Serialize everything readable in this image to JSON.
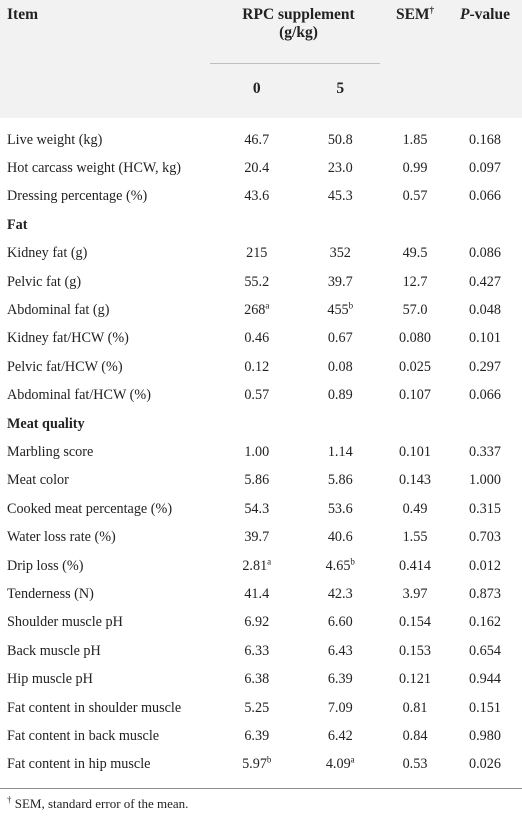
{
  "header": {
    "item": "Item",
    "group": "RPC supplement",
    "group_unit": "(g/kg)",
    "sem": "SEM",
    "sem_mark": "†",
    "p_prefix": "P",
    "p_suffix": "-value",
    "dose0": "0",
    "dose5": "5"
  },
  "rows": [
    {
      "type": "data",
      "item": "Live weight (kg)",
      "v0": "46.7",
      "v5": "50.8",
      "sem": "1.85",
      "p": "0.168"
    },
    {
      "type": "data",
      "item": "Hot carcass weight (HCW, kg)",
      "v0": "20.4",
      "v5": "23.0",
      "sem": "0.99",
      "p": "0.097"
    },
    {
      "type": "data",
      "item": "Dressing percentage (%)",
      "v0": "43.6",
      "v5": "45.3",
      "sem": "0.57",
      "p": "0.066"
    },
    {
      "type": "section",
      "item": "Fat"
    },
    {
      "type": "data",
      "item": "Kidney fat (g)",
      "v0": "215",
      "v5": "352",
      "sem": "49.5",
      "p": "0.086"
    },
    {
      "type": "data",
      "item": "Pelvic fat (g)",
      "v0": "55.2",
      "v5": "39.7",
      "sem": "12.7",
      "p": "0.427"
    },
    {
      "type": "data",
      "item": "Abdominal fat (g)",
      "v0": "268",
      "v0_sup": "a",
      "v5": "455",
      "v5_sup": "b",
      "sem": "57.0",
      "p": "0.048"
    },
    {
      "type": "data",
      "item": "Kidney fat/HCW (%)",
      "v0": "0.46",
      "v5": "0.67",
      "sem": "0.080",
      "p": "0.101"
    },
    {
      "type": "data",
      "item": "Pelvic fat/HCW (%)",
      "v0": "0.12",
      "v5": "0.08",
      "sem": "0.025",
      "p": "0.297"
    },
    {
      "type": "data",
      "item": "Abdominal fat/HCW (%)",
      "v0": "0.57",
      "v5": "0.89",
      "sem": "0.107",
      "p": "0.066"
    },
    {
      "type": "section",
      "item": "Meat quality"
    },
    {
      "type": "data",
      "item": "Marbling score",
      "v0": "1.00",
      "v5": "1.14",
      "sem": "0.101",
      "p": "0.337"
    },
    {
      "type": "data",
      "item": "Meat color",
      "v0": "5.86",
      "v5": "5.86",
      "sem": "0.143",
      "p": "1.000"
    },
    {
      "type": "data",
      "item": "Cooked meat percentage (%)",
      "v0": "54.3",
      "v5": "53.6",
      "sem": "0.49",
      "p": "0.315"
    },
    {
      "type": "data",
      "item": "Water loss rate (%)",
      "v0": "39.7",
      "v5": "40.6",
      "sem": "1.55",
      "p": "0.703"
    },
    {
      "type": "data",
      "item": "Drip loss (%)",
      "v0": "2.81",
      "v0_sup": "a",
      "v5": "4.65",
      "v5_sup": "b",
      "sem": "0.414",
      "p": "0.012"
    },
    {
      "type": "data",
      "item": "Tenderness (N)",
      "v0": "41.4",
      "v5": "42.3",
      "sem": "3.97",
      "p": "0.873"
    },
    {
      "type": "data",
      "item": "Shoulder muscle pH",
      "v0": "6.92",
      "v5": "6.60",
      "sem": "0.154",
      "p": "0.162"
    },
    {
      "type": "data",
      "item": "Back muscle pH",
      "v0": "6.33",
      "v5": "6.43",
      "sem": "0.153",
      "p": "0.654"
    },
    {
      "type": "data",
      "item": "Hip muscle pH",
      "v0": "6.38",
      "v5": "6.39",
      "sem": "0.121",
      "p": "0.944"
    },
    {
      "type": "data",
      "item": "Fat content in shoulder muscle",
      "v0": "5.25",
      "v5": "7.09",
      "sem": "0.81",
      "p": "0.151"
    },
    {
      "type": "data",
      "item": "Fat content in back muscle",
      "v0": "6.39",
      "v5": "6.42",
      "sem": "0.84",
      "p": "0.980"
    },
    {
      "type": "data",
      "item": "Fat content in hip muscle",
      "v0": "5.97",
      "v0_sup": "b",
      "v5": "4.09",
      "v5_sup": "a",
      "sem": "0.53",
      "p": "0.026"
    }
  ],
  "footnote": {
    "mark": "†",
    "text": " SEM, standard error of the mean."
  }
}
